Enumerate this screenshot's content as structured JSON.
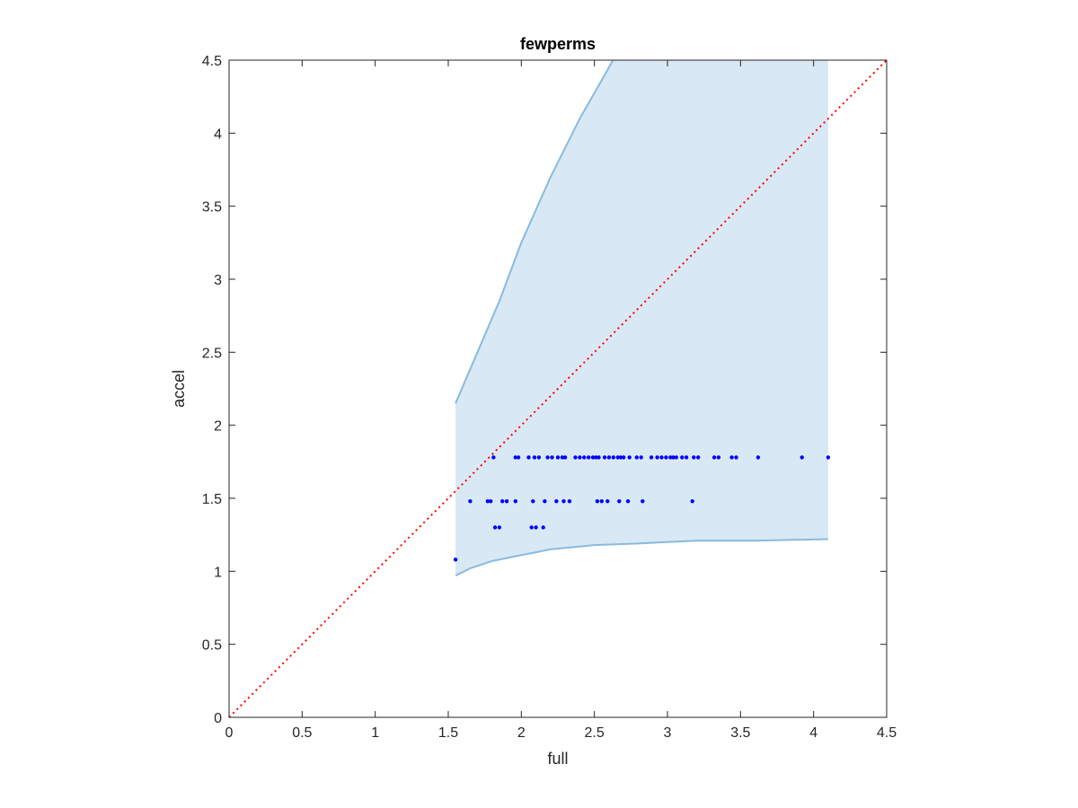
{
  "chart_data": {
    "type": "scatter",
    "title": "fewperms",
    "xlabel": "full",
    "ylabel": "accel",
    "xlim": [
      0,
      4.5
    ],
    "ylim": [
      0,
      4.5
    ],
    "xticks": [
      "0",
      "0.5",
      "1",
      "1.5",
      "2",
      "2.5",
      "3",
      "3.5",
      "4",
      "4.5"
    ],
    "yticks": [
      "0",
      "0.5",
      "1",
      "1.5",
      "2",
      "2.5",
      "3",
      "3.5",
      "4",
      "4.5"
    ],
    "xtick_values": [
      0,
      0.5,
      1,
      1.5,
      2,
      2.5,
      3,
      3.5,
      4,
      4.5
    ],
    "ytick_values": [
      0,
      0.5,
      1,
      1.5,
      2,
      2.5,
      3,
      3.5,
      4,
      4.5
    ],
    "grid": false,
    "colors": {
      "points": "#0000ff",
      "band_fill": "#d9e8f5",
      "band_edge": "#88bbdd",
      "diagonal": "#ff0000",
      "axes": "#262626"
    },
    "diagonal": {
      "from": [
        0,
        0
      ],
      "to": [
        4.5,
        4.5
      ],
      "style": "dotted"
    },
    "band": {
      "upper": [
        [
          1.55,
          2.15
        ],
        [
          1.7,
          2.5
        ],
        [
          1.85,
          2.85
        ],
        [
          2.0,
          3.25
        ],
        [
          2.2,
          3.7
        ],
        [
          2.4,
          4.1
        ],
        [
          2.6,
          4.45
        ],
        [
          2.68,
          4.6
        ],
        [
          4.1,
          4.6
        ]
      ],
      "lower": [
        [
          1.55,
          0.97
        ],
        [
          1.65,
          1.02
        ],
        [
          1.8,
          1.07
        ],
        [
          2.0,
          1.11
        ],
        [
          2.2,
          1.15
        ],
        [
          2.5,
          1.18
        ],
        [
          2.8,
          1.19
        ],
        [
          3.0,
          1.2
        ],
        [
          3.2,
          1.21
        ],
        [
          3.6,
          1.21
        ],
        [
          4.1,
          1.22
        ]
      ]
    },
    "series": [
      {
        "points": [
          [
            1.55,
            1.08
          ],
          [
            1.82,
            1.3
          ],
          [
            1.85,
            1.3
          ],
          [
            2.07,
            1.3
          ],
          [
            2.1,
            1.3
          ],
          [
            2.15,
            1.3
          ],
          [
            1.65,
            1.48
          ],
          [
            1.77,
            1.48
          ],
          [
            1.79,
            1.48
          ],
          [
            1.87,
            1.48
          ],
          [
            1.9,
            1.48
          ],
          [
            1.96,
            1.48
          ],
          [
            2.08,
            1.48
          ],
          [
            2.16,
            1.48
          ],
          [
            2.24,
            1.48
          ],
          [
            2.29,
            1.48
          ],
          [
            2.33,
            1.48
          ],
          [
            2.52,
            1.48
          ],
          [
            2.55,
            1.48
          ],
          [
            2.59,
            1.48
          ],
          [
            2.67,
            1.48
          ],
          [
            2.73,
            1.48
          ],
          [
            2.83,
            1.48
          ],
          [
            3.17,
            1.48
          ],
          [
            1.81,
            1.78
          ],
          [
            1.96,
            1.78
          ],
          [
            1.98,
            1.78
          ],
          [
            2.05,
            1.78
          ],
          [
            2.09,
            1.78
          ],
          [
            2.12,
            1.78
          ],
          [
            2.18,
            1.78
          ],
          [
            2.21,
            1.78
          ],
          [
            2.25,
            1.78
          ],
          [
            2.28,
            1.78
          ],
          [
            2.3,
            1.78
          ],
          [
            2.37,
            1.78
          ],
          [
            2.4,
            1.78
          ],
          [
            2.43,
            1.78
          ],
          [
            2.46,
            1.78
          ],
          [
            2.49,
            1.78
          ],
          [
            2.51,
            1.78
          ],
          [
            2.53,
            1.78
          ],
          [
            2.57,
            1.78
          ],
          [
            2.6,
            1.78
          ],
          [
            2.63,
            1.78
          ],
          [
            2.66,
            1.78
          ],
          [
            2.68,
            1.78
          ],
          [
            2.7,
            1.78
          ],
          [
            2.74,
            1.78
          ],
          [
            2.79,
            1.78
          ],
          [
            2.82,
            1.78
          ],
          [
            2.89,
            1.78
          ],
          [
            2.93,
            1.78
          ],
          [
            2.96,
            1.78
          ],
          [
            2.99,
            1.78
          ],
          [
            3.02,
            1.78
          ],
          [
            3.04,
            1.78
          ],
          [
            3.06,
            1.78
          ],
          [
            3.1,
            1.78
          ],
          [
            3.13,
            1.78
          ],
          [
            3.18,
            1.78
          ],
          [
            3.21,
            1.78
          ],
          [
            3.32,
            1.78
          ],
          [
            3.35,
            1.78
          ],
          [
            3.44,
            1.78
          ],
          [
            3.47,
            1.78
          ],
          [
            3.62,
            1.78
          ],
          [
            3.92,
            1.78
          ],
          [
            4.1,
            1.78
          ]
        ]
      }
    ]
  }
}
